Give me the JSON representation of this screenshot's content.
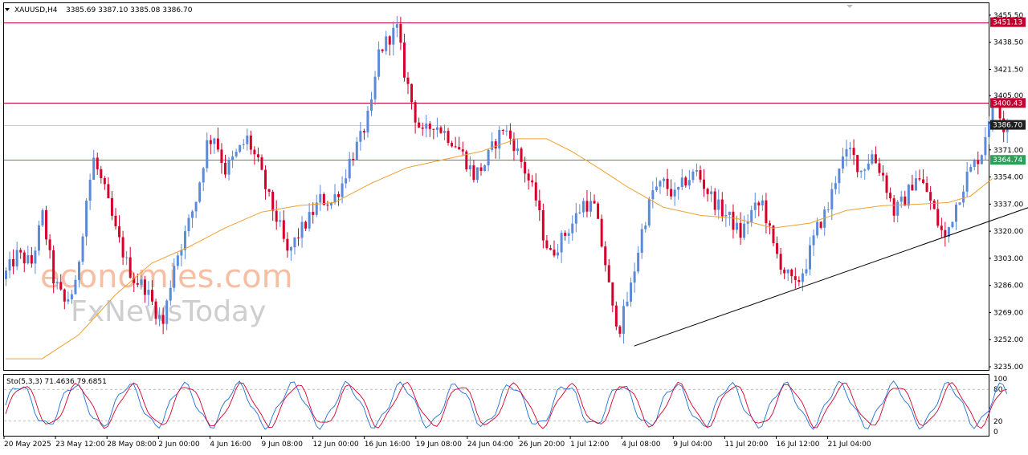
{
  "header": {
    "symbol": "XAUUSD,H4",
    "ohlc": "3385.69 3387.10 3385.08 3386.70"
  },
  "indicator": {
    "label": "Sto(5,3,3) 71.4636 79.6851",
    "levels": [
      100,
      80,
      20,
      0
    ],
    "level_labels": [
      "100",
      "80",
      "20",
      "0"
    ]
  },
  "watermark": {
    "line1": "economies.com",
    "line2": "FxNewsToday"
  },
  "colors": {
    "bull": "#5b8ad8",
    "bear": "#d6002b",
    "ma": "#f0a030",
    "resistance": "#c2002f",
    "support": "#2e9e5a",
    "current": "#202020",
    "trendline": "#000000",
    "stoch_main": "#1e6fd8",
    "stoch_signal": "#d6002b",
    "watermark1": "#f6b79a",
    "watermark2": "#c9c9c9"
  },
  "chart_data": {
    "type": "candlestick",
    "price_ticks": [
      3455.5,
      3438.5,
      3421.5,
      3405.0,
      3388.0,
      3371.0,
      3354.0,
      3337.0,
      3320.0,
      3303.0,
      3286.0,
      3269.0,
      3252.0,
      3235.0
    ],
    "price_tick_labels": [
      "3455.50",
      "3438.50",
      "3421.50",
      "3405.00",
      "3388.00",
      "3371.00",
      "3354.00",
      "3337.00",
      "3320.00",
      "3303.00",
      "3286.00",
      "3269.00",
      "3252.00",
      "3235.00"
    ],
    "ylim": [
      3233,
      3463
    ],
    "levels": [
      {
        "name": "resistance-1",
        "price": 3451.13,
        "label": "3451.13",
        "color": "#c2002f"
      },
      {
        "name": "resistance-2",
        "price": 3400.43,
        "label": "3400.43",
        "color": "#c2002f"
      },
      {
        "name": "current-price",
        "price": 3386.7,
        "label": "3386.70",
        "color": "#202020"
      },
      {
        "name": "support-1",
        "price": 3364.74,
        "label": "3364.74",
        "color": "#2e9e5a"
      }
    ],
    "time_labels": [
      "20 May 2025",
      "23 May 12:00",
      "28 May 08:00",
      "2 Jun 00:00",
      "4 Jun 16:00",
      "9 Jun 08:00",
      "12 Jun 00:00",
      "16 Jun 16:00",
      "19 Jun 08:00",
      "24 Jun 04:00",
      "26 Jun 20:00",
      "1 Jul 12:00",
      "4 Jul 08:00",
      "9 Jul 04:00",
      "11 Jul 20:00",
      "16 Jul 12:00",
      "21 Jul 04:00"
    ],
    "close_path": [
      [
        0,
        3290
      ],
      [
        4,
        3305
      ],
      [
        8,
        3300
      ],
      [
        11,
        3330
      ],
      [
        14,
        3290
      ],
      [
        17,
        3275
      ],
      [
        20,
        3285
      ],
      [
        23,
        3340
      ],
      [
        25,
        3365
      ],
      [
        28,
        3345
      ],
      [
        31,
        3320
      ],
      [
        34,
        3300
      ],
      [
        36,
        3290
      ],
      [
        39,
        3285
      ],
      [
        42,
        3270
      ],
      [
        44,
        3262
      ],
      [
        47,
        3300
      ],
      [
        50,
        3318
      ],
      [
        53,
        3340
      ],
      [
        56,
        3375
      ],
      [
        58,
        3380
      ],
      [
        61,
        3358
      ],
      [
        64,
        3368
      ],
      [
        67,
        3378
      ],
      [
        70,
        3362
      ],
      [
        73,
        3340
      ],
      [
        76,
        3322
      ],
      [
        78,
        3305
      ],
      [
        81,
        3318
      ],
      [
        84,
        3328
      ],
      [
        87,
        3340
      ],
      [
        90,
        3338
      ],
      [
        93,
        3350
      ],
      [
        95,
        3364
      ],
      [
        98,
        3378
      ],
      [
        101,
        3398
      ],
      [
        103,
        3432
      ],
      [
        106,
        3442
      ],
      [
        108,
        3447
      ],
      [
        110,
        3420
      ],
      [
        113,
        3392
      ],
      [
        115,
        3380
      ],
      [
        118,
        3388
      ],
      [
        121,
        3382
      ],
      [
        124,
        3375
      ],
      [
        126,
        3368
      ],
      [
        129,
        3355
      ],
      [
        132,
        3362
      ],
      [
        134,
        3372
      ],
      [
        137,
        3385
      ],
      [
        140,
        3375
      ],
      [
        143,
        3358
      ],
      [
        146,
        3340
      ],
      [
        148,
        3318
      ],
      [
        150,
        3305
      ],
      [
        153,
        3315
      ],
      [
        156,
        3325
      ],
      [
        159,
        3338
      ],
      [
        162,
        3335
      ],
      [
        165,
        3300
      ],
      [
        167,
        3270
      ],
      [
        169,
        3260
      ],
      [
        172,
        3285
      ],
      [
        175,
        3320
      ],
      [
        178,
        3345
      ],
      [
        181,
        3350
      ],
      [
        184,
        3342
      ],
      [
        187,
        3352
      ],
      [
        190,
        3357
      ],
      [
        193,
        3345
      ],
      [
        196,
        3335
      ],
      [
        199,
        3328
      ],
      [
        202,
        3318
      ],
      [
        205,
        3332
      ],
      [
        208,
        3338
      ],
      [
        211,
        3310
      ],
      [
        214,
        3295
      ],
      [
        217,
        3285
      ],
      [
        220,
        3300
      ],
      [
        223,
        3322
      ],
      [
        226,
        3335
      ],
      [
        229,
        3362
      ],
      [
        232,
        3370
      ],
      [
        235,
        3358
      ],
      [
        238,
        3368
      ],
      [
        241,
        3355
      ],
      [
        244,
        3332
      ],
      [
        247,
        3340
      ],
      [
        250,
        3355
      ],
      [
        253,
        3345
      ],
      [
        256,
        3325
      ],
      [
        258,
        3315
      ],
      [
        261,
        3337
      ],
      [
        264,
        3355
      ],
      [
        266,
        3362
      ],
      [
        268,
        3370
      ],
      [
        270,
        3392
      ],
      [
        272,
        3402
      ],
      [
        274,
        3386.7
      ]
    ],
    "ma_path": [
      [
        0,
        3240
      ],
      [
        10,
        3240
      ],
      [
        20,
        3255
      ],
      [
        30,
        3280
      ],
      [
        40,
        3300
      ],
      [
        50,
        3310
      ],
      [
        60,
        3322
      ],
      [
        70,
        3332
      ],
      [
        80,
        3336
      ],
      [
        90,
        3338
      ],
      [
        100,
        3350
      ],
      [
        110,
        3360
      ],
      [
        120,
        3365
      ],
      [
        130,
        3370
      ],
      [
        140,
        3378
      ],
      [
        148,
        3378
      ],
      [
        155,
        3370
      ],
      [
        162,
        3360
      ],
      [
        170,
        3348
      ],
      [
        180,
        3335
      ],
      [
        190,
        3330
      ],
      [
        200,
        3328
      ],
      [
        210,
        3322
      ],
      [
        220,
        3325
      ],
      [
        230,
        3333
      ],
      [
        240,
        3336
      ],
      [
        250,
        3337
      ],
      [
        258,
        3338
      ],
      [
        264,
        3342
      ],
      [
        270,
        3353
      ]
    ],
    "trendline": {
      "from": [
        172,
        3248
      ],
      "to": [
        290,
        3343
      ]
    },
    "bar_count": 275,
    "stoch_value": 71.4636,
    "stoch_signal_value": 79.6851
  }
}
